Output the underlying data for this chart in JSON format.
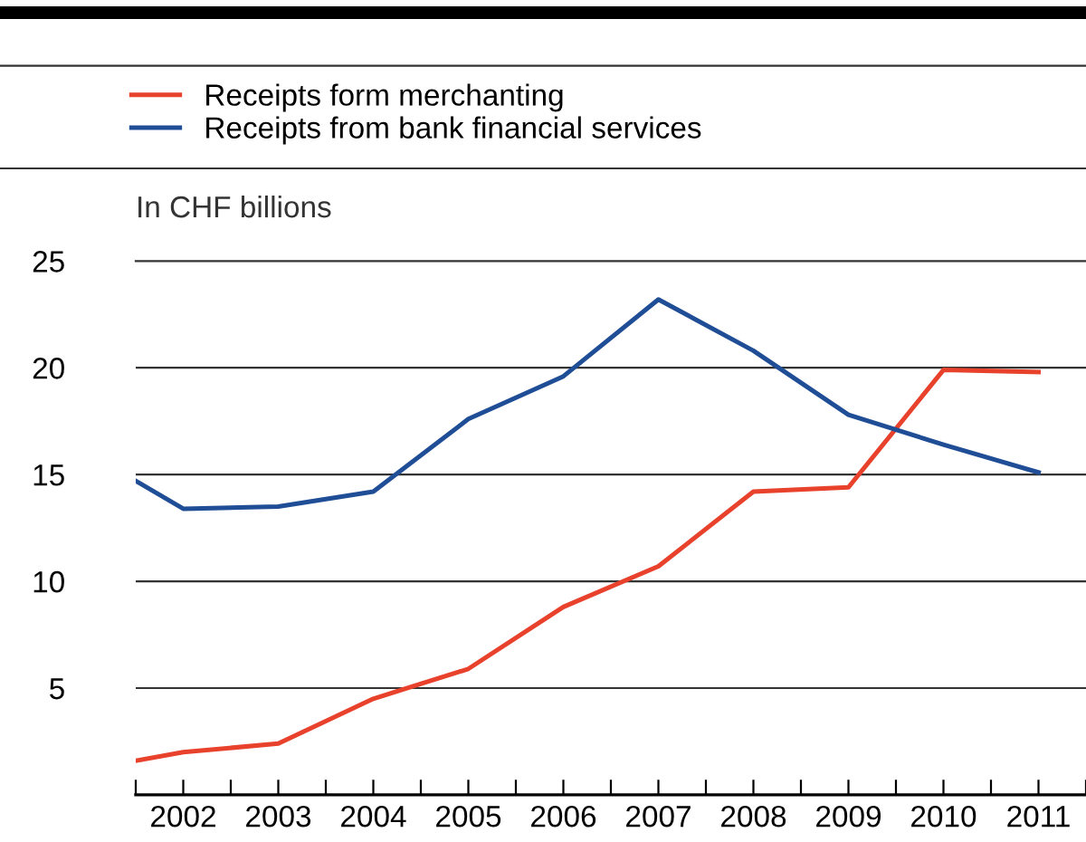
{
  "chart_data": {
    "type": "line",
    "ylabel": "In CHF billions",
    "x": [
      2001.5,
      2002,
      2003,
      2004,
      2005,
      2006,
      2007,
      2008,
      2009,
      2010,
      2011
    ],
    "series": [
      {
        "name": "Receipts form merchanting",
        "color": "#e8412c",
        "values": [
          1.6,
          2.0,
          2.4,
          4.5,
          5.9,
          8.8,
          10.7,
          14.2,
          14.4,
          19.9,
          19.8
        ]
      },
      {
        "name": "Receipts from bank financial services",
        "color": "#1f4e96",
        "values": [
          14.7,
          13.4,
          13.5,
          14.2,
          17.6,
          19.6,
          23.2,
          20.8,
          17.8,
          16.4,
          15.1
        ]
      }
    ],
    "xlim": [
      2001.5,
      2011.5
    ],
    "xticks": [
      {
        "value": 2001.5,
        "label": null
      },
      2002,
      {
        "value": 2002.5,
        "label": null
      },
      2003,
      {
        "value": 2003.5,
        "label": null
      },
      2004,
      {
        "value": 2004.5,
        "label": null
      },
      2005,
      {
        "value": 2005.5,
        "label": null
      },
      2006,
      {
        "value": 2006.5,
        "label": null
      },
      2007,
      {
        "value": 2007.5,
        "label": null
      },
      2008,
      {
        "value": 2008.5,
        "label": null
      },
      2009,
      {
        "value": 2009.5,
        "label": null
      },
      2010,
      {
        "value": 2010.5,
        "label": null
      },
      2011,
      {
        "value": 2011.5,
        "label": null
      }
    ],
    "ylim": [
      0,
      25
    ],
    "yticks": [
      5,
      10,
      15,
      20,
      25
    ],
    "grid": "y",
    "legend": "top left",
    "marker": "none",
    "line_style": "solid"
  }
}
